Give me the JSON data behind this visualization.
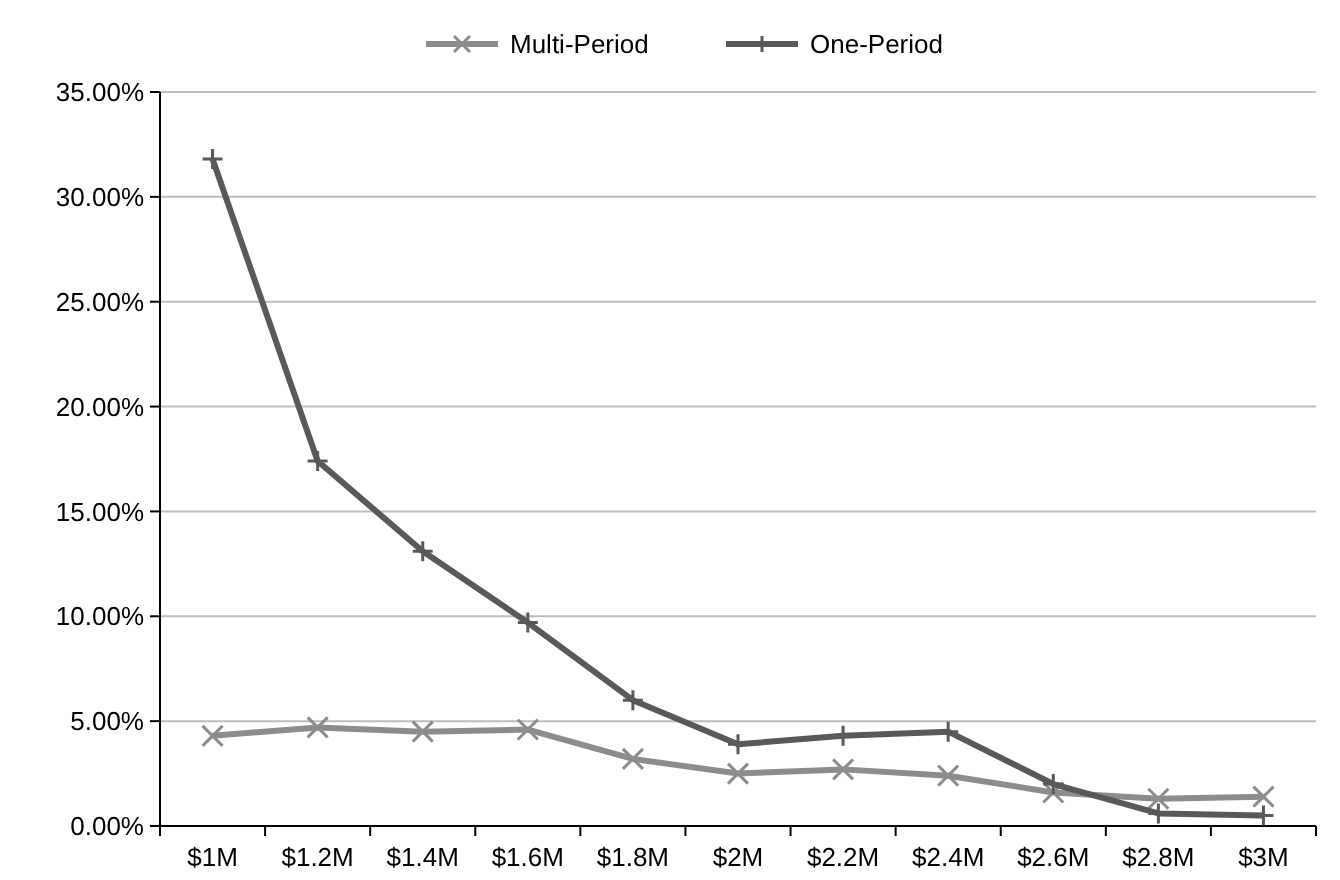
{
  "chart_data": {
    "type": "line",
    "categories": [
      "$1M",
      "$1.2M",
      "$1.4M",
      "$1.6M",
      "$1.8M",
      "$2M",
      "$2.2M",
      "$2.4M",
      "$2.6M",
      "$2.8M",
      "$3M"
    ],
    "series": [
      {
        "name": "Multi-Period",
        "color": "#8c8c8c",
        "marker": "cross",
        "values": [
          4.3,
          4.7,
          4.5,
          4.6,
          3.2,
          2.5,
          2.7,
          2.4,
          1.6,
          1.3,
          1.4
        ]
      },
      {
        "name": "One-Period",
        "color": "#595959",
        "marker": "plus",
        "values": [
          31.8,
          17.4,
          13.1,
          9.7,
          6.0,
          3.9,
          4.3,
          4.5,
          2.0,
          0.6,
          0.5
        ]
      }
    ],
    "ylim": [
      0,
      35
    ],
    "yticks": [
      {
        "value": 0,
        "label": "0.00%"
      },
      {
        "value": 5,
        "label": "5.00%"
      },
      {
        "value": 10,
        "label": "10.00%"
      },
      {
        "value": 15,
        "label": "15.00%"
      },
      {
        "value": 20,
        "label": "20.00%"
      },
      {
        "value": 25,
        "label": "25.00%"
      },
      {
        "value": 30,
        "label": "30.00%"
      },
      {
        "value": 35,
        "label": "35.00%"
      }
    ],
    "grid": "y",
    "legend": "top",
    "line_style": "solid"
  }
}
